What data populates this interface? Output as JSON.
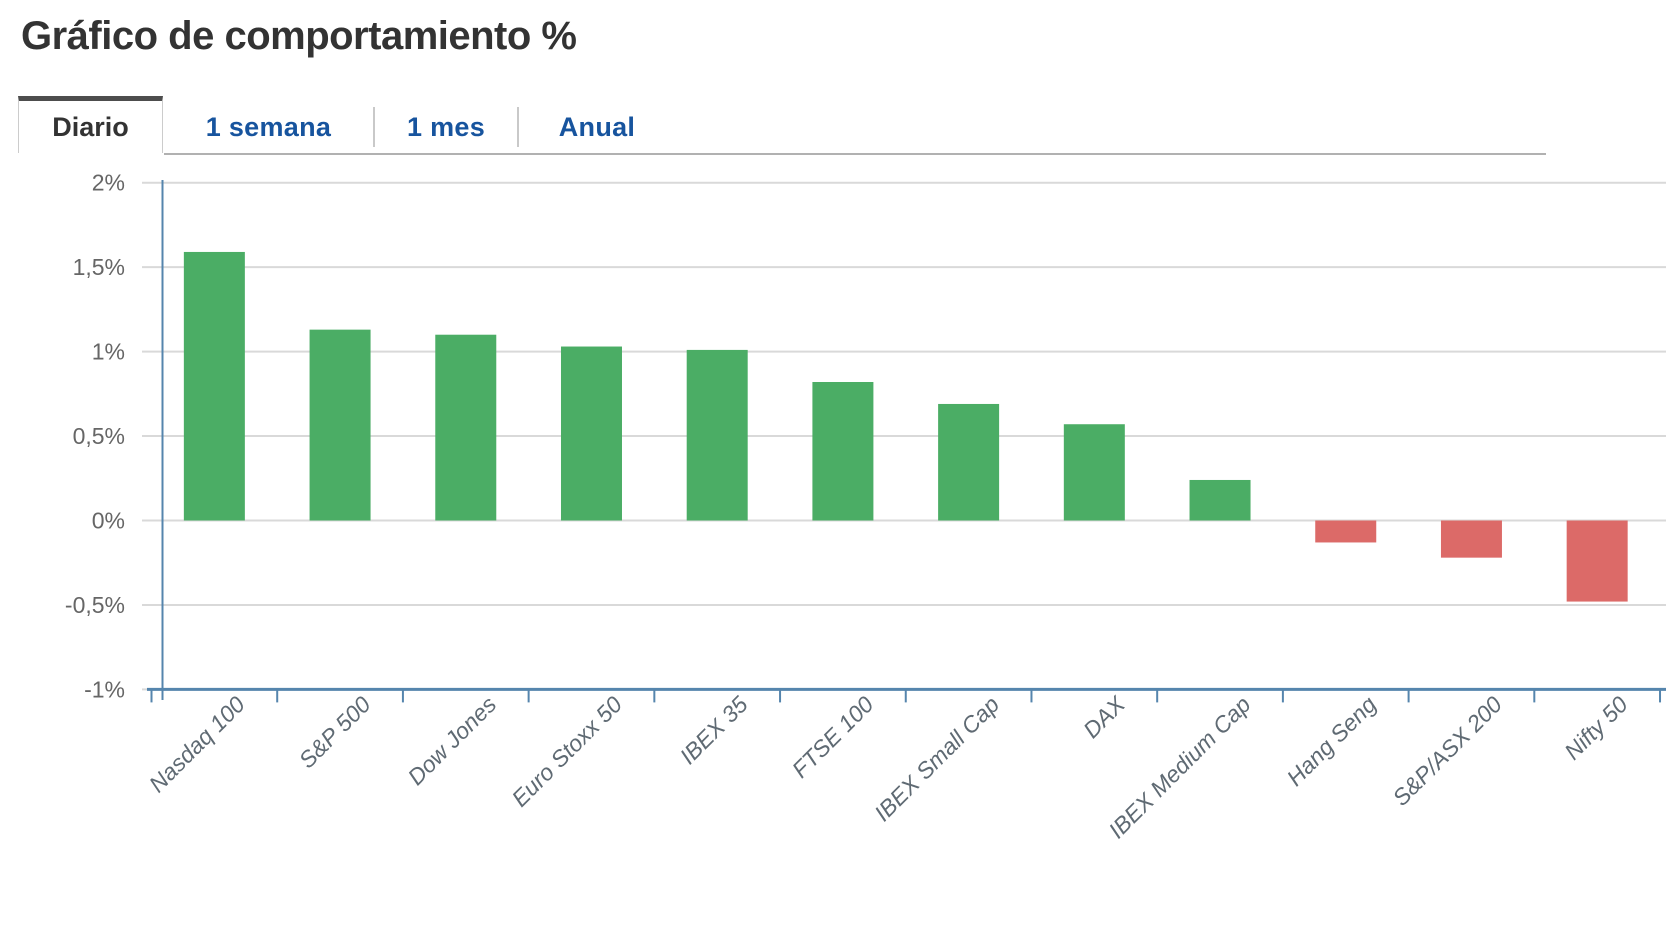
{
  "title": "Gráfico de comportamiento %",
  "tabs": [
    {
      "label": "Diario",
      "active": true
    },
    {
      "label": "1 semana",
      "active": false
    },
    {
      "label": "1 mes",
      "active": false
    },
    {
      "label": "Anual",
      "active": false
    }
  ],
  "colors": {
    "positive_bar": "#4bad65",
    "negative_bar": "#dc6a68",
    "axis_line": "#5585ad",
    "gridline": "#d9d9d9",
    "axis_label": "#666666",
    "x_label": "#5f6a73",
    "title_text": "#333333",
    "tab_active_text": "#333333",
    "tab_inactive_text": "#17549e",
    "tab_active_top_border": "#4d4d4d"
  },
  "chart_data": {
    "type": "bar",
    "title": "Gráfico de comportamiento %",
    "xlabel": "",
    "ylabel": "",
    "categories": [
      "Nasdaq 100",
      "S&P 500",
      "Dow Jones",
      "Euro Stoxx 50",
      "IBEX 35",
      "FTSE 100",
      "IBEX Small Cap",
      "DAX",
      "IBEX Medium Cap",
      "Hang Seng",
      "S&P/ASX 200",
      "Nifty 50"
    ],
    "values": [
      1.59,
      1.13,
      1.1,
      1.03,
      1.01,
      0.82,
      0.69,
      0.57,
      0.24,
      -0.13,
      -0.22,
      -0.48
    ],
    "unit": "%",
    "ylim": [
      -1,
      2
    ],
    "y_tick_values": [
      2,
      1.5,
      1,
      0.5,
      0,
      -0.5,
      -1
    ],
    "y_tick_labels": [
      "2%",
      "1,5%",
      "1%",
      "0,5%",
      "0%",
      "-0,5%",
      "-1%"
    ],
    "grid": true,
    "legend": "none",
    "bar_color_rule": "green if positive, red if negative"
  }
}
